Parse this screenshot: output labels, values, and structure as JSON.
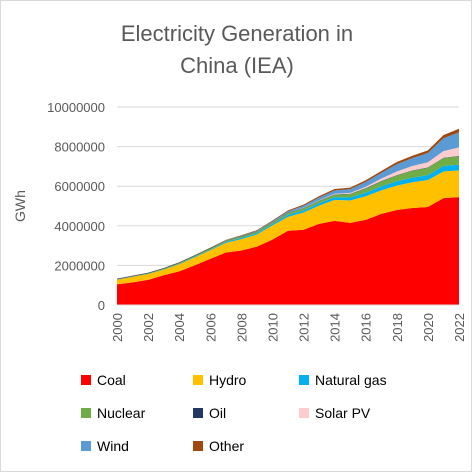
{
  "chart_data": {
    "type": "area",
    "stacked": true,
    "title_lines": [
      "Electricity Generation in",
      "China (IEA)"
    ],
    "xlabel": "",
    "ylabel": "GWh",
    "ylim": [
      0,
      10000000
    ],
    "yticks": [
      0,
      2000000,
      4000000,
      6000000,
      8000000,
      10000000
    ],
    "ytick_labels": [
      "0",
      "2000000",
      "4000000",
      "6000000",
      "8000000",
      "10000000"
    ],
    "xlim": [
      2000,
      2022
    ],
    "xticks": [
      2000,
      2002,
      2004,
      2006,
      2008,
      2010,
      2012,
      2014,
      2016,
      2018,
      2020,
      2022
    ],
    "xtick_labels": [
      "2000",
      "2002",
      "2004",
      "2006",
      "2008",
      "2010",
      "2012",
      "2014",
      "2016",
      "2018",
      "2020",
      "2022"
    ],
    "grid": true,
    "legend_position": "bottom",
    "x": [
      2000,
      2001,
      2002,
      2003,
      2004,
      2005,
      2006,
      2007,
      2008,
      2009,
      2010,
      2011,
      2012,
      2013,
      2014,
      2015,
      2016,
      2017,
      2018,
      2019,
      2020,
      2021,
      2022
    ],
    "series": [
      {
        "name": "Coal",
        "color": "#ff0000",
        "values": [
          1050000,
          1140000,
          1270000,
          1500000,
          1700000,
          2000000,
          2330000,
          2650000,
          2750000,
          2950000,
          3300000,
          3750000,
          3800000,
          4100000,
          4250000,
          4150000,
          4300000,
          4600000,
          4800000,
          4900000,
          4950000,
          5400000,
          5450000
        ]
      },
      {
        "name": "Hydro",
        "color": "#ffc000",
        "values": [
          220000,
          280000,
          290000,
          280000,
          350000,
          400000,
          430000,
          480000,
          580000,
          610000,
          720000,
          700000,
          870000,
          920000,
          1060000,
          1130000,
          1190000,
          1190000,
          1230000,
          1300000,
          1360000,
          1340000,
          1350000
        ]
      },
      {
        "name": "Natural gas",
        "color": "#00b0f0",
        "values": [
          5000,
          6000,
          7000,
          10000,
          20000,
          30000,
          30000,
          50000,
          60000,
          70000,
          80000,
          100000,
          110000,
          120000,
          130000,
          150000,
          180000,
          200000,
          220000,
          230000,
          250000,
          280000,
          290000
        ]
      },
      {
        "name": "Nuclear",
        "color": "#70ad47",
        "values": [
          20000,
          20000,
          30000,
          40000,
          50000,
          50000,
          60000,
          60000,
          70000,
          70000,
          70000,
          90000,
          100000,
          110000,
          130000,
          170000,
          210000,
          250000,
          290000,
          350000,
          370000,
          400000,
          420000
        ]
      },
      {
        "name": "Oil",
        "color": "#1f3864",
        "values": [
          30000,
          30000,
          30000,
          30000,
          30000,
          30000,
          30000,
          20000,
          20000,
          20000,
          20000,
          20000,
          20000,
          20000,
          20000,
          20000,
          20000,
          20000,
          20000,
          20000,
          20000,
          20000,
          20000
        ]
      },
      {
        "name": "Solar PV",
        "color": "#ffcccc",
        "values": [
          0,
          0,
          0,
          0,
          0,
          0,
          0,
          0,
          0,
          0,
          0,
          0,
          10000,
          20000,
          30000,
          40000,
          70000,
          120000,
          180000,
          220000,
          260000,
          330000,
          430000
        ]
      },
      {
        "name": "Wind",
        "color": "#5b9bd5",
        "values": [
          0,
          0,
          0,
          0,
          0,
          0,
          0,
          10000,
          10000,
          30000,
          40000,
          70000,
          100000,
          140000,
          160000,
          190000,
          240000,
          290000,
          370000,
          400000,
          470000,
          650000,
          760000
        ]
      },
      {
        "name": "Other",
        "color": "#9e480e",
        "values": [
          5000,
          5000,
          5000,
          10000,
          10000,
          10000,
          20000,
          20000,
          30000,
          30000,
          40000,
          50000,
          60000,
          70000,
          80000,
          80000,
          90000,
          100000,
          110000,
          120000,
          130000,
          160000,
          180000
        ]
      }
    ]
  }
}
